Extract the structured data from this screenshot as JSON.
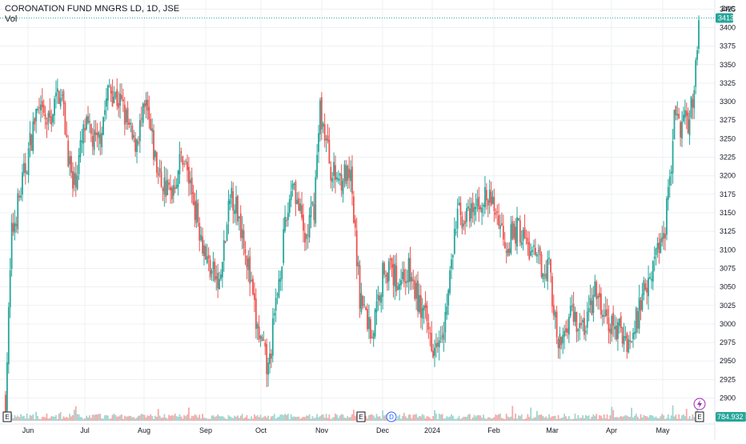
{
  "header": {
    "symbol_title": "CORONATION FUND MNGRS LD, 1D, JSE",
    "volume_label": "Vol",
    "currency": "ZAC"
  },
  "price_axis": {
    "ticks": [
      "3425",
      "3400",
      "3375",
      "3350",
      "3325",
      "3300",
      "3275",
      "3250",
      "3225",
      "3200",
      "3175",
      "3150",
      "3125",
      "3100",
      "3075",
      "3050",
      "3025",
      "3000",
      "2975",
      "2950",
      "2925",
      "2900"
    ],
    "last_price_label": "3413",
    "volume_label": "784.932 K"
  },
  "time_axis": {
    "labels": [
      "Jun",
      "Jul",
      "Aug",
      "Sep",
      "Oct",
      "Nov",
      "Dec",
      "2024",
      "Feb",
      "Mar",
      "Apr",
      "May"
    ]
  },
  "events": {
    "earnings": "E",
    "dividend": "D",
    "split_icon": "lightning-icon"
  },
  "colors": {
    "up": "#26a69a",
    "down": "#ef5350",
    "up_volume": "#9fd6d0",
    "down_volume": "#f7a9a7",
    "grid": "#eef0f3",
    "axis_text": "#131722",
    "price_line": "#26a69a",
    "dividend": "#2962ff",
    "split": "#9c27b0"
  },
  "chart_data": {
    "type": "candlestick",
    "title": "CORONATION FUND MNGRS LD, 1D, JSE",
    "ylabel": "ZAC",
    "ylim": [
      2893,
      3434
    ],
    "last_price": 3413,
    "last_volume": "784.932 K",
    "months": [
      "Jun",
      "Jul",
      "Aug",
      "Sep",
      "Oct",
      "Nov",
      "Dec",
      "2024",
      "Feb",
      "Mar",
      "Apr",
      "May"
    ],
    "approx_path": [
      {
        "date": "May 2023 end",
        "close": 2895
      },
      {
        "date": "Jun 2023 early",
        "close": 3190
      },
      {
        "date": "Jun 2023 late",
        "close": 3290
      },
      {
        "date": "Jul 2023 mid",
        "close": 3340
      },
      {
        "date": "Aug 2023 early",
        "close": 3325
      },
      {
        "date": "Aug 2023 late",
        "close": 3200
      },
      {
        "date": "Sep 2023 mid",
        "close": 3180
      },
      {
        "date": "Oct 2023 early",
        "close": 3045
      },
      {
        "date": "Oct 2023 late",
        "close": 2960
      },
      {
        "date": "Nov 2023 early",
        "close": 2930
      },
      {
        "date": "Nov 2023 mid",
        "close": 3280
      },
      {
        "date": "Dec 2023 early",
        "close": 3190
      },
      {
        "date": "Dec 2023 mid",
        "close": 2990
      },
      {
        "date": "Jan 2024 mid",
        "close": 3070
      },
      {
        "date": "Jan 2024 late",
        "close": 2965
      },
      {
        "date": "Feb 2024 early",
        "close": 3165
      },
      {
        "date": "Feb 2024 late",
        "close": 3140
      },
      {
        "date": "Mar 2024 mid",
        "close": 3085
      },
      {
        "date": "Mar 2024 late",
        "close": 2960
      },
      {
        "date": "Apr 2024 mid",
        "close": 3030
      },
      {
        "date": "Apr 2024 late",
        "close": 2980
      },
      {
        "date": "May 2024 early",
        "close": 3060
      },
      {
        "date": "May 2024 mid",
        "close": 3270
      },
      {
        "date": "May 2024 late",
        "close": 3413
      }
    ]
  }
}
